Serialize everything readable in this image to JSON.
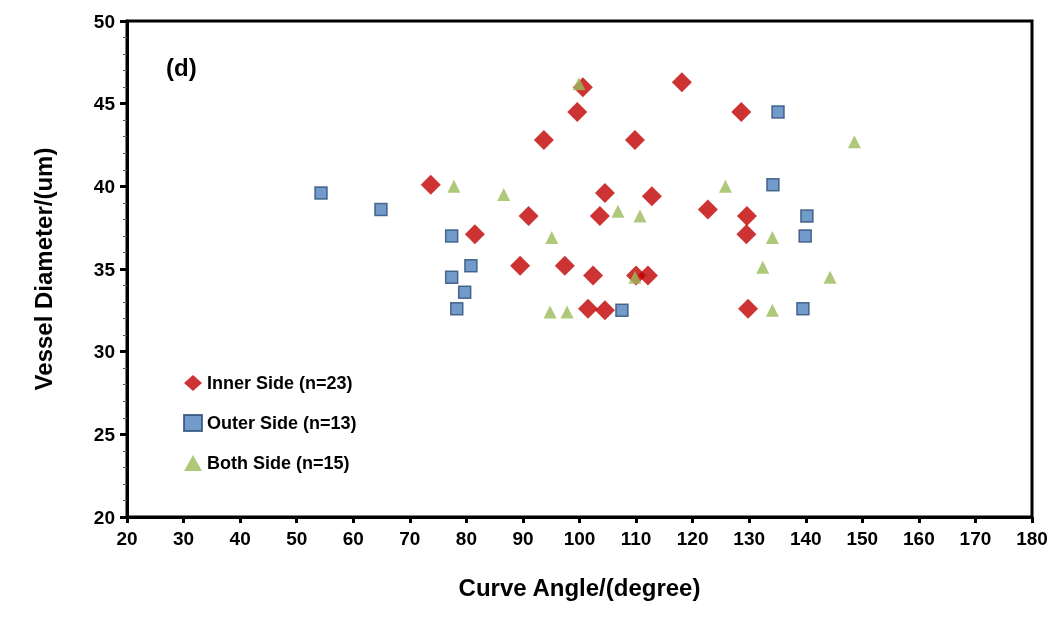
{
  "chart_data": {
    "type": "scatter",
    "xlabel": "Curve Angle/(degree)",
    "ylabel": "Vessel Diameter/(um)",
    "annotations": [
      "(d)"
    ],
    "xlim": [
      20,
      180
    ],
    "xticks": [
      20,
      30,
      40,
      50,
      60,
      70,
      80,
      90,
      100,
      110,
      120,
      130,
      140,
      150,
      160,
      170,
      180
    ],
    "ylim": [
      20,
      50
    ],
    "yticks": [
      20,
      25,
      30,
      35,
      40,
      45,
      50
    ],
    "grid": false,
    "legend": "bottom left",
    "series": [
      {
        "name": "Inner Side (n=23)",
        "color": "#c00000",
        "marker": "diamond",
        "x": [
          100.6,
          118.1,
          99.6,
          93.7,
          109.8,
          73.7,
          104.5,
          112.8,
          91.0,
          103.6,
          81.5,
          89.5,
          97.4,
          102.4,
          110.0,
          112.1,
          101.5,
          104.5,
          128.6,
          122.7,
          129.6,
          129.5,
          129.8
        ],
        "values": [
          46.0,
          46.3,
          44.5,
          42.8,
          42.8,
          40.1,
          39.6,
          39.4,
          38.2,
          38.2,
          37.1,
          35.2,
          35.2,
          34.6,
          34.6,
          34.6,
          32.6,
          32.5,
          44.5,
          38.6,
          38.2,
          37.1,
          32.6
        ]
      },
      {
        "name": "Outer Side (n=13)",
        "color": "#4f81bd",
        "marker": "square",
        "x": [
          54.3,
          64.9,
          77.4,
          80.8,
          77.4,
          79.7,
          78.3,
          107.5,
          135.1,
          134.2,
          140.2,
          139.9,
          139.5
        ],
        "values": [
          39.6,
          38.6,
          37.0,
          35.2,
          34.5,
          33.6,
          32.6,
          32.5,
          44.5,
          40.1,
          38.2,
          37.0,
          32.6
        ]
      },
      {
        "name": "Both Side (n=15)",
        "color": "#9bbb59",
        "marker": "triangle",
        "x": [
          99.9,
          77.8,
          86.6,
          106.8,
          110.7,
          95.1,
          109.8,
          94.8,
          97.8,
          148.6,
          125.8,
          134.1,
          132.4,
          144.3,
          134.1
        ],
        "values": [
          46.2,
          40.0,
          39.5,
          38.5,
          38.2,
          36.9,
          34.5,
          32.4,
          32.4,
          42.7,
          40.0,
          36.9,
          35.1,
          34.5,
          32.5
        ]
      }
    ]
  }
}
